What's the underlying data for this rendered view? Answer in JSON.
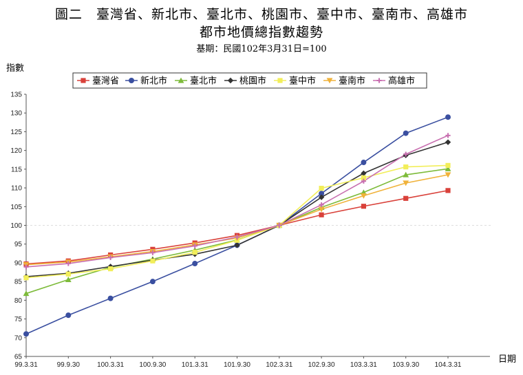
{
  "title_line1": "圖二　臺灣省、新北市、臺北市、桃園市、臺中市、臺南市、高雄市",
  "title_line2": "都市地價總指數趨勢",
  "subtitle": "基期：民國102年3月31日=100",
  "chart_data": {
    "type": "line",
    "ylabel": "指數",
    "xlabel": "日期",
    "ylim": [
      65,
      135
    ],
    "yticks": [
      65,
      70,
      75,
      80,
      85,
      90,
      95,
      100,
      105,
      110,
      115,
      120,
      125,
      130,
      135
    ],
    "categories": [
      "99.3.31",
      "99.9.30",
      "100.3.31",
      "100.9.30",
      "101.3.31",
      "101.9.30",
      "102.3.31",
      "102.9.30",
      "103.3.31",
      "103.9.30",
      "104.3.31"
    ],
    "reference_line": 100,
    "grid": false,
    "legend_position": "top",
    "series": [
      {
        "name": "臺灣省",
        "color": "#d9413a",
        "marker": "square",
        "values": [
          89.7,
          90.5,
          92.1,
          93.6,
          95.3,
          97.3,
          100,
          102.8,
          105.1,
          107.2,
          109.3
        ]
      },
      {
        "name": "新北市",
        "color": "#3a4fa0",
        "marker": "circle",
        "values": [
          71.0,
          76.0,
          80.5,
          85.0,
          89.8,
          94.7,
          100,
          108.5,
          116.8,
          124.6,
          128.9
        ]
      },
      {
        "name": "臺北市",
        "color": "#7dbb3a",
        "marker": "triangle",
        "values": [
          81.8,
          85.5,
          88.8,
          91.0,
          93.4,
          96.1,
          100,
          104.8,
          108.8,
          113.5,
          115.1
        ]
      },
      {
        "name": "桃園市",
        "color": "#333333",
        "marker": "diamond",
        "values": [
          86.3,
          87.2,
          89.0,
          90.7,
          92.3,
          94.7,
          100,
          107.5,
          113.9,
          118.7,
          122.2
        ]
      },
      {
        "name": "臺中市",
        "color": "#f2ee5a",
        "marker": "square",
        "values": [
          86.0,
          87.0,
          88.4,
          90.5,
          92.8,
          96.0,
          100,
          109.9,
          112.7,
          115.6,
          116.0
        ]
      },
      {
        "name": "臺南市",
        "color": "#f0b23a",
        "marker": "triangle-down",
        "values": [
          89.5,
          90.2,
          91.6,
          93.0,
          94.8,
          96.6,
          100,
          104.3,
          107.9,
          111.3,
          113.5
        ]
      },
      {
        "name": "高雄市",
        "color": "#c86fb0",
        "marker": "cross",
        "values": [
          88.9,
          89.8,
          91.4,
          92.7,
          94.5,
          96.9,
          100,
          105.5,
          111.8,
          119.0,
          124.0
        ]
      }
    ]
  }
}
